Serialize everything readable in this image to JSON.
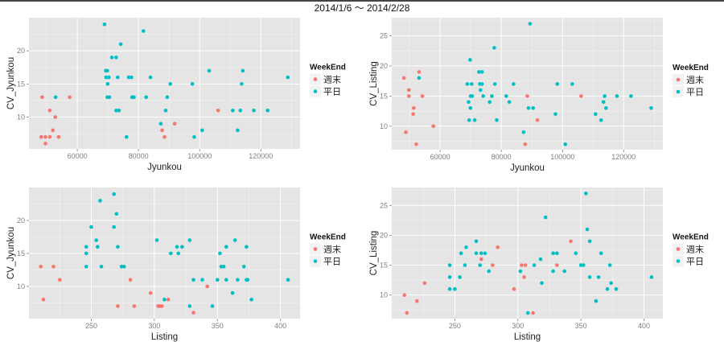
{
  "title": "2014/1/6 ～ 2014/2/28",
  "colors": {
    "週末": "#F8766D",
    "平日": "#00BFC4",
    "panel_bg": "#E5E5E5",
    "grid": "#FFFFFF"
  },
  "chart_data": [
    {
      "type": "scatter",
      "xlabel": "Jyunkou",
      "ylabel": "CV_Jyunkou",
      "xlim": [
        44200,
        132800
      ],
      "ylim": [
        5.2,
        25.0
      ],
      "xticks": [
        60000,
        80000,
        100000,
        120000
      ],
      "yticks": [
        10,
        15,
        20
      ],
      "legend": {
        "title": "WeekEnd",
        "entries": [
          "週末",
          "平日"
        ],
        "position": "right"
      },
      "series": [
        {
          "name": "週末",
          "points": [
            [
              48200,
              7
            ],
            [
              48500,
              13
            ],
            [
              49600,
              7
            ],
            [
              49600,
              6
            ],
            [
              51000,
              7
            ],
            [
              51000,
              11
            ],
            [
              52000,
              8
            ],
            [
              52800,
              10
            ],
            [
              53900,
              7
            ],
            [
              57500,
              13
            ],
            [
              87700,
              8
            ],
            [
              88500,
              7
            ],
            [
              91800,
              9
            ],
            [
              106000,
              11
            ]
          ]
        },
        {
          "name": "平日",
          "points": [
            [
              52900,
              13
            ],
            [
              68900,
              24
            ],
            [
              69300,
              17
            ],
            [
              69800,
              17
            ],
            [
              69400,
              16
            ],
            [
              70300,
              16
            ],
            [
              69900,
              15
            ],
            [
              69800,
              13
            ],
            [
              70500,
              13
            ],
            [
              71300,
              19
            ],
            [
              72700,
              19
            ],
            [
              72700,
              11
            ],
            [
              73600,
              11
            ],
            [
              73200,
              16
            ],
            [
              74200,
              21
            ],
            [
              76100,
              7
            ],
            [
              76800,
              16
            ],
            [
              77700,
              16
            ],
            [
              77900,
              13
            ],
            [
              78500,
              13
            ],
            [
              81600,
              23
            ],
            [
              82500,
              13
            ],
            [
              83900,
              16
            ],
            [
              87300,
              9
            ],
            [
              88900,
              11
            ],
            [
              89400,
              13
            ],
            [
              90400,
              15
            ],
            [
              97600,
              15
            ],
            [
              98200,
              7
            ],
            [
              100800,
              8
            ],
            [
              103100,
              17
            ],
            [
              110800,
              11
            ],
            [
              112400,
              8
            ],
            [
              113300,
              11
            ],
            [
              113700,
              15
            ],
            [
              114100,
              17
            ],
            [
              117700,
              11
            ],
            [
              122200,
              11
            ],
            [
              128800,
              16
            ]
          ]
        }
      ]
    },
    {
      "type": "scatter",
      "xlabel": "Jyunkou",
      "ylabel": "CV_Listing",
      "xlim": [
        44200,
        132800
      ],
      "ylim": [
        6.1,
        28.0
      ],
      "xticks": [
        60000,
        80000,
        100000,
        120000
      ],
      "yticks": [
        10,
        15,
        20,
        25
      ],
      "legend": {
        "title": "WeekEnd",
        "entries": [
          "週末",
          "平日"
        ],
        "position": "right"
      },
      "series": [
        {
          "name": "週末",
          "points": [
            [
              48200,
              18
            ],
            [
              48800,
              9
            ],
            [
              49800,
              16
            ],
            [
              49800,
              15
            ],
            [
              51400,
              13
            ],
            [
              51200,
              12
            ],
            [
              52200,
              7
            ],
            [
              53100,
              19
            ],
            [
              54200,
              15
            ],
            [
              57800,
              10
            ],
            [
              87800,
              7
            ],
            [
              88500,
              15
            ],
            [
              91800,
              11
            ],
            [
              106100,
              15
            ]
          ]
        },
        {
          "name": "平日",
          "points": [
            [
              53100,
              18
            ],
            [
              68900,
              17
            ],
            [
              69300,
              14
            ],
            [
              69500,
              11
            ],
            [
              69800,
              21
            ],
            [
              69900,
              13
            ],
            [
              70000,
              15
            ],
            [
              70300,
              17
            ],
            [
              70500,
              15
            ],
            [
              71300,
              11
            ],
            [
              72700,
              19
            ],
            [
              73700,
              19
            ],
            [
              73000,
              17
            ],
            [
              73700,
              17
            ],
            [
              73200,
              16
            ],
            [
              74100,
              15
            ],
            [
              76200,
              14
            ],
            [
              76900,
              15
            ],
            [
              77700,
              23
            ],
            [
              77900,
              17
            ],
            [
              78500,
              11
            ],
            [
              81600,
              15
            ],
            [
              82600,
              14
            ],
            [
              84000,
              17
            ],
            [
              87300,
              9
            ],
            [
              88900,
              13
            ],
            [
              89400,
              27
            ],
            [
              90400,
              13
            ],
            [
              97700,
              12
            ],
            [
              98300,
              17
            ],
            [
              100900,
              7
            ],
            [
              103200,
              17
            ],
            [
              110800,
              12
            ],
            [
              112600,
              11
            ],
            [
              113400,
              14
            ],
            [
              113800,
              15
            ],
            [
              114200,
              13
            ],
            [
              117800,
              15
            ],
            [
              122400,
              15
            ],
            [
              129000,
              13
            ]
          ]
        }
      ]
    },
    {
      "type": "scatter",
      "xlabel": "Listing",
      "ylabel": "CV_Jyunkou",
      "xlim": [
        200.6,
        415.5
      ],
      "ylim": [
        5.1,
        25.0
      ],
      "xticks": [
        250,
        300,
        350,
        400
      ],
      "yticks": [
        10,
        15,
        20
      ],
      "legend": {
        "title": "WeekEnd",
        "entries": [
          "週末",
          "平日"
        ],
        "position": "right"
      },
      "series": [
        {
          "name": "週末",
          "points": [
            [
              210,
              13
            ],
            [
              212,
              8
            ],
            [
              220,
              13
            ],
            [
              225,
              11
            ],
            [
              271,
              7
            ],
            [
              281,
              11
            ],
            [
              284,
              7
            ],
            [
              297,
              9
            ],
            [
              303,
              7
            ],
            [
              304,
              7
            ],
            [
              306,
              7
            ],
            [
              311,
              8
            ],
            [
              331,
              6
            ],
            [
              342,
              10
            ]
          ]
        },
        {
          "name": "平日",
          "points": [
            [
              246,
              16
            ],
            [
              246,
              15
            ],
            [
              246,
              13
            ],
            [
              250,
              19
            ],
            [
              254,
              17
            ],
            [
              255,
              16
            ],
            [
              257,
              23
            ],
            [
              258,
              13
            ],
            [
              268,
              24
            ],
            [
              268,
              19
            ],
            [
              270,
              21
            ],
            [
              271,
              16
            ],
            [
              274,
              13
            ],
            [
              276,
              13
            ],
            [
              302,
              17
            ],
            [
              308,
              8
            ],
            [
              313,
              15
            ],
            [
              318,
              16
            ],
            [
              319,
              15
            ],
            [
              322,
              16
            ],
            [
              328,
              17
            ],
            [
              328,
              7
            ],
            [
              331,
              11
            ],
            [
              338,
              11
            ],
            [
              346,
              7
            ],
            [
              350,
              11
            ],
            [
              352,
              15
            ],
            [
              353,
              13
            ],
            [
              355,
              13
            ],
            [
              357,
              16
            ],
            [
              357,
              11
            ],
            [
              362,
              9
            ],
            [
              364,
              17
            ],
            [
              366,
              11
            ],
            [
              371,
              13
            ],
            [
              373,
              16
            ],
            [
              373,
              11
            ],
            [
              374,
              11
            ],
            [
              377,
              8
            ],
            [
              406,
              11
            ]
          ]
        }
      ]
    },
    {
      "type": "scatter",
      "xlabel": "Listing",
      "ylabel": "CV_Listing",
      "xlim": [
        200.0,
        415.0
      ],
      "ylim": [
        6.05,
        28.0
      ],
      "xticks": [
        250,
        300,
        350,
        400
      ],
      "yticks": [
        10,
        15,
        20,
        25
      ],
      "legend": {
        "title": "WeekEnd",
        "entries": [
          "週末",
          "平日"
        ],
        "position": "right"
      },
      "series": [
        {
          "name": "週末",
          "points": [
            [
              210,
              10
            ],
            [
              212,
              7
            ],
            [
              220,
              9
            ],
            [
              226,
              12
            ],
            [
              271,
              16
            ],
            [
              280,
              15
            ],
            [
              284,
              18
            ],
            [
              297,
              11
            ],
            [
              303,
              15
            ],
            [
              306,
              15
            ],
            [
              305,
              13
            ],
            [
              312,
              7
            ],
            [
              331,
              15
            ],
            [
              342,
              19
            ]
          ]
        },
        {
          "name": "平日",
          "points": [
            [
              246,
              11
            ],
            [
              246,
              13
            ],
            [
              246,
              15
            ],
            [
              250,
              11
            ],
            [
              254,
              13
            ],
            [
              255,
              17
            ],
            [
              258,
              15
            ],
            [
              259,
              18
            ],
            [
              267,
              19
            ],
            [
              267,
              17
            ],
            [
              270,
              15
            ],
            [
              271,
              17
            ],
            [
              274,
              17
            ],
            [
              277,
              14
            ],
            [
              302,
              14
            ],
            [
              308,
              7
            ],
            [
              313,
              15
            ],
            [
              318,
              16
            ],
            [
              319,
              12
            ],
            [
              322,
              23
            ],
            [
              328,
              17
            ],
            [
              328,
              14
            ],
            [
              331,
              17
            ],
            [
              337,
              14
            ],
            [
              346,
              17
            ],
            [
              350,
              15
            ],
            [
              352,
              15
            ],
            [
              354,
              27
            ],
            [
              355,
              21
            ],
            [
              357,
              19
            ],
            [
              357,
              13
            ],
            [
              362,
              9
            ],
            [
              364,
              13
            ],
            [
              366,
              17
            ],
            [
              371,
              11
            ],
            [
              373,
              15
            ],
            [
              374,
              12
            ],
            [
              378,
              11
            ],
            [
              406,
              13
            ]
          ]
        }
      ]
    }
  ]
}
